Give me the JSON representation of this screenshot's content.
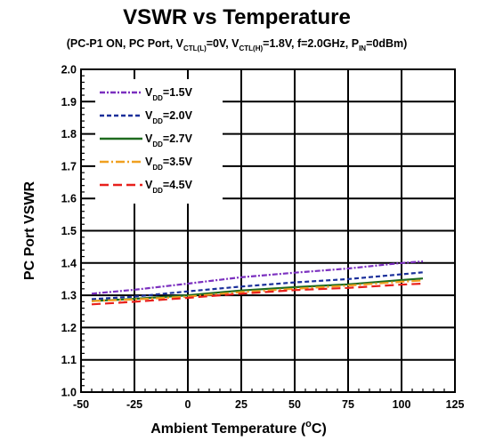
{
  "chart_data": {
    "type": "line",
    "title": "VSWR vs Temperature",
    "subtitle_parts": [
      {
        "t": "(PC-P1 ON, PC Port, V"
      },
      {
        "t": "CTL(L)",
        "sub": true
      },
      {
        "t": "=0V, V"
      },
      {
        "t": "CTL(H)",
        "sub": true
      },
      {
        "t": "=1.8V, f=2.0GHz, P"
      },
      {
        "t": "IN",
        "sub": true
      },
      {
        "t": "=0dBm)"
      }
    ],
    "xlabel": "Ambient Temperature",
    "xlabel_unit_prefix": "(",
    "xlabel_unit_sup": "o",
    "xlabel_unit_suffix": "C)",
    "ylabel": "PC Port VSWR",
    "xlim": [
      -50,
      125
    ],
    "ylim": [
      1.0,
      2.0
    ],
    "xticks": [
      -50,
      -25,
      0,
      25,
      50,
      75,
      100,
      125
    ],
    "yticks": [
      1.0,
      1.1,
      1.2,
      1.3,
      1.4,
      1.5,
      1.6,
      1.7,
      1.8,
      1.9,
      2.0
    ],
    "xtick_labels": [
      "-50",
      "-25",
      "0",
      "25",
      "50",
      "75",
      "100",
      "125"
    ],
    "ytick_labels": [
      "1.0",
      "1.1",
      "1.2",
      "1.3",
      "1.4",
      "1.5",
      "1.6",
      "1.7",
      "1.8",
      "1.9",
      "2.0"
    ],
    "grid": true,
    "legend_position": "top-left",
    "x": [
      -45,
      -25,
      0,
      25,
      50,
      75,
      100,
      110
    ],
    "series": [
      {
        "label_main": "V",
        "label_sub": "DD",
        "label_value": "=1.5V",
        "color": "#7b2fbf",
        "dash": "6,2,2,2",
        "values": [
          1.305,
          1.317,
          1.336,
          1.356,
          1.37,
          1.383,
          1.4,
          1.405
        ]
      },
      {
        "label_main": "V",
        "label_sub": "DD",
        "label_value": "=2.0V",
        "color": "#1a2f9a",
        "dash": "5,3",
        "values": [
          1.288,
          1.296,
          1.312,
          1.327,
          1.34,
          1.35,
          1.365,
          1.371
        ]
      },
      {
        "label_main": "V",
        "label_sub": "DD",
        "label_value": "=2.7V",
        "color": "#1e6b1e",
        "dash": "",
        "values": [
          1.282,
          1.289,
          1.3,
          1.315,
          1.325,
          1.334,
          1.347,
          1.352
        ]
      },
      {
        "label_main": "V",
        "label_sub": "DD",
        "label_value": "=3.5V",
        "color": "#f0a020",
        "dash": "10,3,2,3",
        "values": [
          1.282,
          1.287,
          1.296,
          1.31,
          1.32,
          1.33,
          1.342,
          1.346
        ]
      },
      {
        "label_main": "V",
        "label_sub": "DD",
        "label_value": "=4.5V",
        "color": "#e8201c",
        "dash": "10,5",
        "values": [
          1.272,
          1.28,
          1.292,
          1.305,
          1.316,
          1.323,
          1.333,
          1.336
        ]
      }
    ]
  }
}
